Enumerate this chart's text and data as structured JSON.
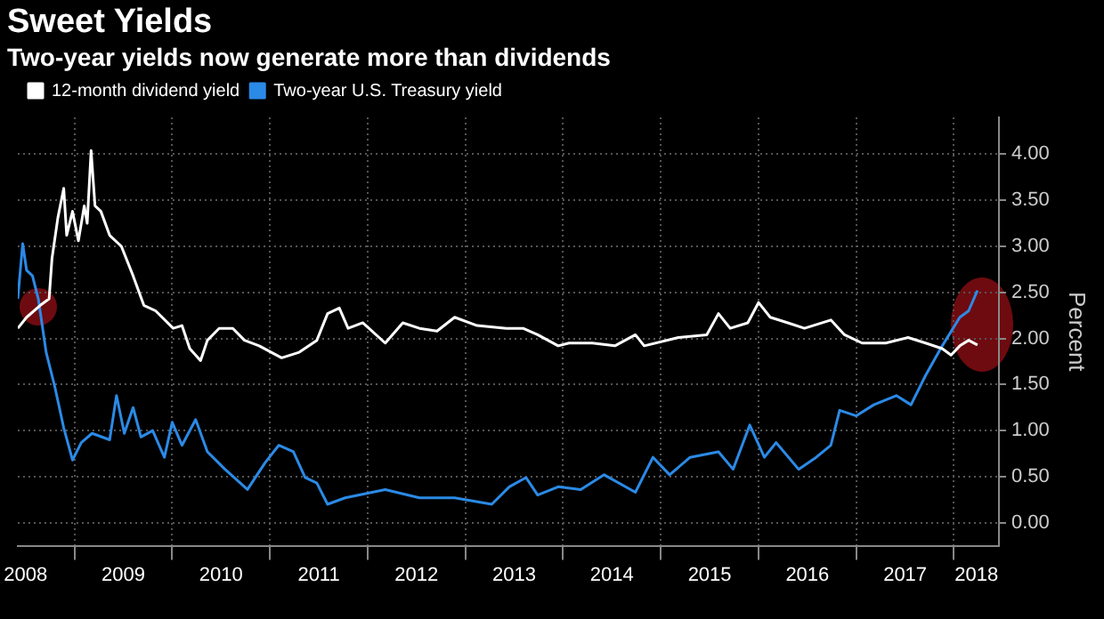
{
  "chart_data": {
    "type": "line",
    "title": "Sweet Yields",
    "subtitle": "Two-year yields now generate more than dividends",
    "ylabel": "Percent",
    "xlim": [
      2008.42,
      2018.46
    ],
    "ylim": [
      -0.25,
      4.4
    ],
    "xticks": [
      {
        "value": 2008.5,
        "label": "2008"
      },
      {
        "value": 2009,
        "label": null
      },
      {
        "value": 2009.5,
        "label": "2009"
      },
      {
        "value": 2010,
        "label": null
      },
      {
        "value": 2010.5,
        "label": "2010"
      },
      {
        "value": 2011,
        "label": null
      },
      {
        "value": 2011.5,
        "label": "2011"
      },
      {
        "value": 2012,
        "label": null
      },
      {
        "value": 2012.5,
        "label": "2012"
      },
      {
        "value": 2013,
        "label": null
      },
      {
        "value": 2013.5,
        "label": "2013"
      },
      {
        "value": 2014,
        "label": null
      },
      {
        "value": 2014.5,
        "label": "2014"
      },
      {
        "value": 2015,
        "label": null
      },
      {
        "value": 2015.5,
        "label": "2015"
      },
      {
        "value": 2016,
        "label": null
      },
      {
        "value": 2016.5,
        "label": "2016"
      },
      {
        "value": 2017,
        "label": null
      },
      {
        "value": 2017.5,
        "label": "2017"
      },
      {
        "value": 2018,
        "label": null
      },
      {
        "value": 2018.23,
        "label": "2018"
      }
    ],
    "yticks": [
      {
        "value": 0,
        "label": "0.00"
      },
      {
        "value": 0.5,
        "label": "0.50"
      },
      {
        "value": 1,
        "label": "1.00"
      },
      {
        "value": 1.5,
        "label": "1.50"
      },
      {
        "value": 2,
        "label": "2.00"
      },
      {
        "value": 2.5,
        "label": "2.50"
      },
      {
        "value": 3,
        "label": "3.00"
      },
      {
        "value": 3.5,
        "label": "3.50"
      },
      {
        "value": 4,
        "label": "4.00"
      }
    ],
    "grid": true,
    "legend": "top left",
    "series": [
      {
        "name": "12-month dividend yield",
        "color": "#ffffff",
        "x": [
          2008.42,
          2008.51,
          2008.65,
          2008.74,
          2008.77,
          2008.83,
          2008.89,
          2008.92,
          2008.98,
          2009.04,
          2009.1,
          2009.13,
          2009.17,
          2009.21,
          2009.27,
          2009.36,
          2009.48,
          2009.6,
          2009.71,
          2009.83,
          2010.01,
          2010.1,
          2010.18,
          2010.29,
          2010.36,
          2010.48,
          2010.62,
          2010.74,
          2010.89,
          2011.12,
          2011.3,
          2011.48,
          2011.59,
          2011.71,
          2011.8,
          2011.95,
          2012.18,
          2012.36,
          2012.53,
          2012.71,
          2012.89,
          2013.12,
          2013.42,
          2013.59,
          2013.74,
          2013.95,
          2014.06,
          2014.3,
          2014.53,
          2014.74,
          2014.83,
          2015.18,
          2015.47,
          2015.59,
          2015.71,
          2015.89,
          2016.0,
          2016.12,
          2016.3,
          2016.47,
          2016.74,
          2016.88,
          2017.06,
          2017.3,
          2017.53,
          2017.71,
          2017.88,
          2017.97,
          2018.06,
          2018.15,
          2018.24
        ],
        "values": [
          2.11,
          2.23,
          2.36,
          2.43,
          2.87,
          3.31,
          3.63,
          3.12,
          3.38,
          3.06,
          3.44,
          3.25,
          4.04,
          3.44,
          3.38,
          3.12,
          3.0,
          2.68,
          2.36,
          2.3,
          2.11,
          2.14,
          1.89,
          1.76,
          1.98,
          2.11,
          2.11,
          1.98,
          1.92,
          1.79,
          1.85,
          1.98,
          2.27,
          2.33,
          2.11,
          2.17,
          1.95,
          2.17,
          2.11,
          2.08,
          2.23,
          2.14,
          2.11,
          2.11,
          2.04,
          1.92,
          1.95,
          1.95,
          1.92,
          2.04,
          1.92,
          2.01,
          2.04,
          2.27,
          2.11,
          2.17,
          2.39,
          2.23,
          2.17,
          2.11,
          2.2,
          2.04,
          1.95,
          1.95,
          2.01,
          1.95,
          1.89,
          1.82,
          1.92,
          1.98,
          1.93
        ]
      },
      {
        "name": "Two-year U.S. Treasury yield",
        "color": "#2b8ae6",
        "x": [
          2008.42,
          2008.47,
          2008.51,
          2008.57,
          2008.63,
          2008.71,
          2008.8,
          2008.89,
          2008.98,
          2009.07,
          2009.18,
          2009.36,
          2009.43,
          2009.51,
          2009.6,
          2009.68,
          2009.8,
          2009.92,
          2010.0,
          2010.1,
          2010.24,
          2010.36,
          2010.54,
          2010.77,
          2010.95,
          2011.09,
          2011.24,
          2011.36,
          2011.48,
          2011.59,
          2011.77,
          2012.18,
          2012.53,
          2012.89,
          2013.27,
          2013.45,
          2013.62,
          2013.74,
          2013.95,
          2014.18,
          2014.42,
          2014.74,
          2014.92,
          2015.09,
          2015.3,
          2015.59,
          2015.74,
          2015.91,
          2016.06,
          2016.18,
          2016.41,
          2016.59,
          2016.74,
          2016.83,
          2017.0,
          2017.18,
          2017.41,
          2017.56,
          2017.71,
          2017.88,
          2018.06,
          2018.15,
          2018.24
        ],
        "values": [
          2.43,
          3.03,
          2.74,
          2.68,
          2.43,
          1.85,
          1.47,
          1.03,
          0.68,
          0.87,
          0.97,
          0.9,
          1.38,
          0.97,
          1.25,
          0.93,
          1.0,
          0.71,
          1.09,
          0.84,
          1.12,
          0.77,
          0.58,
          0.36,
          0.65,
          0.84,
          0.77,
          0.49,
          0.43,
          0.2,
          0.27,
          0.36,
          0.27,
          0.27,
          0.2,
          0.39,
          0.49,
          0.3,
          0.39,
          0.36,
          0.52,
          0.33,
          0.71,
          0.52,
          0.71,
          0.77,
          0.58,
          1.06,
          0.71,
          0.87,
          0.58,
          0.71,
          0.84,
          1.22,
          1.16,
          1.28,
          1.38,
          1.28,
          1.6,
          1.92,
          2.23,
          2.3,
          2.52
        ]
      }
    ]
  }
}
